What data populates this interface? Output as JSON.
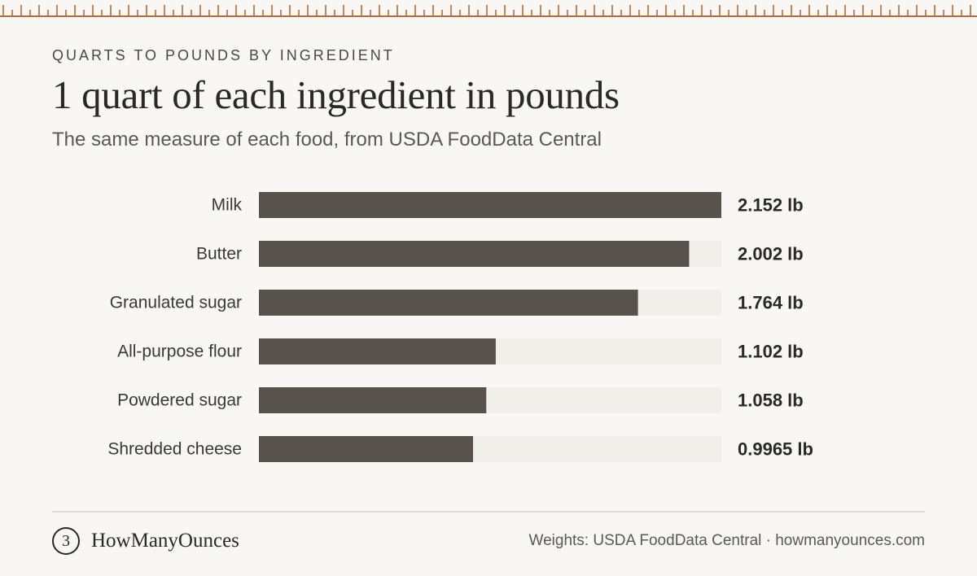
{
  "eyebrow": "QUARTS TO POUNDS BY INGREDIENT",
  "colors": {
    "background": "#f8f7f3",
    "bar": "#57524c",
    "track": "#f1efe9",
    "ruler": "#b56a3c"
  },
  "chart_data": {
    "type": "bar",
    "orientation": "horizontal",
    "title": "1 quart of each ingredient in pounds",
    "subtitle": "The same measure of each food, from USDA FoodData Central",
    "categories": [
      "Milk",
      "Butter",
      "Granulated sugar",
      "All-purpose flour",
      "Powdered sugar",
      "Shredded cheese"
    ],
    "values": [
      2.152,
      2.002,
      1.764,
      1.102,
      1.058,
      0.9965
    ],
    "value_labels": [
      "2.152 lb",
      "2.002 lb",
      "1.764 lb",
      "1.102 lb",
      "1.058 lb",
      "0.9965 lb"
    ],
    "unit": "lb",
    "xlim": [
      0,
      2.152
    ],
    "grid": false,
    "legend": "none"
  },
  "footer": {
    "logo_icon": "3",
    "logo_text": "HowManyOunces",
    "credit": "Weights: USDA FoodData Central · howmanyounces.com"
  }
}
